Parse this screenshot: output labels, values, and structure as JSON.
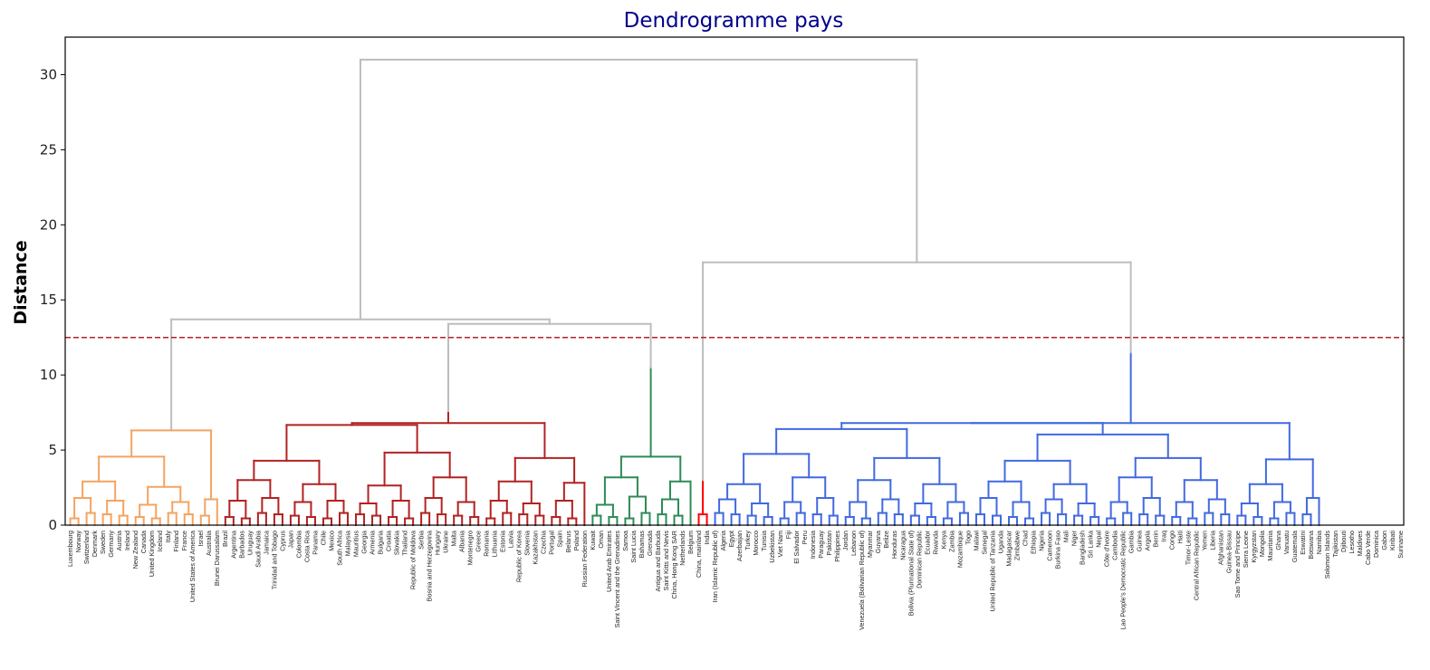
{
  "chart_data": {
    "type": "dendrogram",
    "title": "Dendrogramme pays",
    "xlabel": "",
    "ylabel": "Distance",
    "ylim": [
      0,
      32.5
    ],
    "yticks": [
      0,
      5,
      10,
      15,
      20,
      25,
      30
    ],
    "grid": false,
    "legend": "none",
    "cut_threshold": 12.5,
    "colors": {
      "title": "#00008B",
      "cut_line": "#B22222",
      "above_threshold": "#BDBDBD",
      "clusters": [
        "#F4A460",
        "#B22222",
        "#2E8B57",
        "#FF0000",
        "#4169E1"
      ]
    },
    "leaves": [
      "Luxembourg",
      "Norway",
      "Switzerland",
      "Denmark",
      "Sweden",
      "Germany",
      "Austria",
      "Ireland",
      "New Zealand",
      "Canada",
      "United Kingdom",
      "Iceland",
      "Italy",
      "Finland",
      "France",
      "United States of America",
      "Israel",
      "Australia",
      "Brunei Darussalam",
      "Brazil",
      "Argentina",
      "Barbados",
      "Uruguay",
      "Saudi Arabia",
      "Jamaica",
      "Trinidad and Tobago",
      "Cyprus",
      "Japan",
      "Colombia",
      "Costa Rica",
      "Panama",
      "Chile",
      "Mexico",
      "South Africa",
      "Malaysia",
      "Mauritius",
      "Georgia",
      "Armenia",
      "Bulgaria",
      "Croatia",
      "Slovakia",
      "Thailand",
      "Republic of Moldova",
      "Serbia",
      "Bosnia and Herzegovina",
      "Hungary",
      "Ukraine",
      "Malta",
      "Albania",
      "Montenegro",
      "Greece",
      "Romania",
      "Lithuania",
      "Estonia",
      "Latvia",
      "Republic of Korea",
      "Slovenia",
      "Kazakhstan",
      "Czechia",
      "Portugal",
      "Spain",
      "Belarus",
      "Poland",
      "Russian Federation",
      "Kuwait",
      "Oman",
      "United Arab Emirates",
      "Saint Vincent and the Grenadines",
      "Samoa",
      "Saint Lucia",
      "Bahamas",
      "Grenada",
      "Antigua and Barbuda",
      "Saint Kitts and Nevis",
      "China, Hong Kong SAR",
      "Netherlands",
      "Belgium",
      "China, mainland",
      "India",
      "Iran (Islamic Republic of)",
      "Algeria",
      "Egypt",
      "Azerbaijan",
      "Turkey",
      "Morocco",
      "Tunisia",
      "Uzbekistan",
      "Viet Nam",
      "Fiji",
      "El Salvador",
      "Peru",
      "Indonesia",
      "Paraguay",
      "Pakistan",
      "Philippines",
      "Jordan",
      "Lebanon",
      "Venezuela (Bolivarian Republic of)",
      "Myanmar",
      "Guyana",
      "Belize",
      "Honduras",
      "Nicaragua",
      "Bolivia (Plurinational State of)",
      "Dominican Republic",
      "Ecuador",
      "Rwanda",
      "Kenya",
      "Zambia",
      "Mozambique",
      "Togo",
      "Malawi",
      "Senegal",
      "United Republic of Tanzania",
      "Uganda",
      "Madagascar",
      "Zimbabwe",
      "Chad",
      "Ethiopia",
      "Nigeria",
      "Cameroon",
      "Burkina Faso",
      "Mali",
      "Niger",
      "Bangladesh",
      "Sri Lanka",
      "Nepal",
      "Côte d'Ivoire",
      "Cambodia",
      "Lao People's Democratic Republic",
      "Gambia",
      "Guinea",
      "Angola",
      "Benin",
      "Iraq",
      "Congo",
      "Haiti",
      "Timor-Leste",
      "Central African Republic",
      "Yemen",
      "Liberia",
      "Afghanistan",
      "Guinea-Bissau",
      "Sao Tome and Principe",
      "Sierra Leone",
      "Kyrgyzstan",
      "Mongolia",
      "Mauritania",
      "Ghana",
      "Vanuatu",
      "Guatemala",
      "Eswatini",
      "Botswana",
      "Namibia",
      "Solomon Islands",
      "Tajikistan",
      "Djibouti",
      "Lesotho",
      "Maldives",
      "Cabo Verde",
      "Dominica",
      "Gabon",
      "Kiribati",
      "Suriname"
    ],
    "clusters": [
      {
        "color": "#F4A460",
        "range": [
          0,
          18
        ]
      },
      {
        "color": "#B22222",
        "range": [
          19,
          63
        ]
      },
      {
        "color": "#2E8B57",
        "range": [
          64,
          76
        ]
      },
      {
        "color": "#FF0000",
        "range": [
          77,
          78
        ]
      },
      {
        "color": "#4169E1",
        "range": [
          79,
          153
        ]
      }
    ],
    "top_merges": [
      {
        "height": 13.7,
        "note": "orange + (red + green)"
      },
      {
        "height": 13.4,
        "note": "red + green"
      },
      {
        "height": 7.6,
        "note": "red cluster root"
      },
      {
        "height": 10.5,
        "note": "green cluster root"
      },
      {
        "height": 11.5,
        "note": "blue cluster root"
      },
      {
        "height": 17.5,
        "note": "red(India/China) + blue"
      },
      {
        "height": 31.0,
        "note": "root"
      }
    ]
  }
}
